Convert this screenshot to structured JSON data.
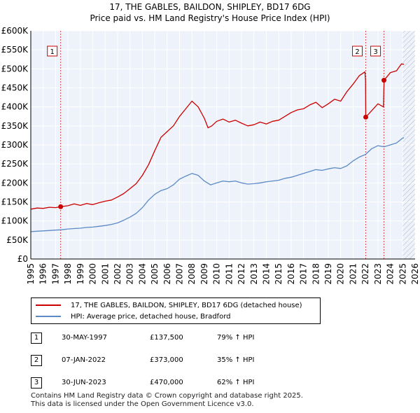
{
  "title_line1": "17, THE GABLES, BAILDON, SHIPLEY, BD17 6DG",
  "title_line2": "Price paid vs. HM Land Registry's House Price Index (HPI)",
  "chart_data": {
    "type": "line",
    "xlim": [
      1995,
      2026
    ],
    "ylim": [
      0,
      600000
    ],
    "x_ticks": [
      1995,
      1996,
      1997,
      1998,
      1999,
      2000,
      2001,
      2002,
      2003,
      2004,
      2005,
      2006,
      2007,
      2008,
      2009,
      2010,
      2011,
      2012,
      2013,
      2014,
      2015,
      2016,
      2017,
      2018,
      2019,
      2020,
      2021,
      2022,
      2023,
      2024,
      2025,
      2026
    ],
    "y_ticks": [
      {
        "value": 0,
        "label": "£0"
      },
      {
        "value": 50000,
        "label": "£50K"
      },
      {
        "value": 100000,
        "label": "£100K"
      },
      {
        "value": 150000,
        "label": "£150K"
      },
      {
        "value": 200000,
        "label": "£200K"
      },
      {
        "value": 250000,
        "label": "£250K"
      },
      {
        "value": 300000,
        "label": "£300K"
      },
      {
        "value": 350000,
        "label": "£350K"
      },
      {
        "value": 400000,
        "label": "£400K"
      },
      {
        "value": 450000,
        "label": "£450K"
      },
      {
        "value": 500000,
        "label": "£500K"
      },
      {
        "value": 550000,
        "label": "£550K"
      },
      {
        "value": 600000,
        "label": "£600K"
      }
    ],
    "grid": true,
    "hatched_future_from": 2025.0,
    "series": [
      {
        "name": "17, THE GABLES, BAILDON, SHIPLEY, BD17 6DG (detached house)",
        "color": "#cc0000",
        "points": [
          [
            1995.0,
            131000
          ],
          [
            1995.5,
            134000
          ],
          [
            1996.0,
            133000
          ],
          [
            1996.5,
            136000
          ],
          [
            1997.0,
            135000
          ],
          [
            1997.41,
            137500
          ],
          [
            1998.0,
            140000
          ],
          [
            1998.5,
            145000
          ],
          [
            1999.0,
            141000
          ],
          [
            1999.5,
            146000
          ],
          [
            2000.0,
            143000
          ],
          [
            2000.5,
            148000
          ],
          [
            2001.0,
            152000
          ],
          [
            2001.5,
            155000
          ],
          [
            2002.0,
            163000
          ],
          [
            2002.5,
            172000
          ],
          [
            2003.0,
            185000
          ],
          [
            2003.5,
            198000
          ],
          [
            2004.0,
            220000
          ],
          [
            2004.5,
            248000
          ],
          [
            2005.0,
            285000
          ],
          [
            2005.5,
            320000
          ],
          [
            2006.0,
            335000
          ],
          [
            2006.5,
            350000
          ],
          [
            2007.0,
            375000
          ],
          [
            2007.5,
            395000
          ],
          [
            2008.0,
            415000
          ],
          [
            2008.5,
            400000
          ],
          [
            2009.0,
            370000
          ],
          [
            2009.3,
            345000
          ],
          [
            2009.6,
            350000
          ],
          [
            2010.0,
            362000
          ],
          [
            2010.5,
            368000
          ],
          [
            2011.0,
            360000
          ],
          [
            2011.5,
            365000
          ],
          [
            2012.0,
            357000
          ],
          [
            2012.5,
            350000
          ],
          [
            2013.0,
            353000
          ],
          [
            2013.5,
            360000
          ],
          [
            2014.0,
            355000
          ],
          [
            2014.5,
            362000
          ],
          [
            2015.0,
            365000
          ],
          [
            2015.5,
            375000
          ],
          [
            2016.0,
            385000
          ],
          [
            2016.5,
            392000
          ],
          [
            2017.0,
            395000
          ],
          [
            2017.5,
            405000
          ],
          [
            2018.0,
            412000
          ],
          [
            2018.5,
            398000
          ],
          [
            2019.0,
            408000
          ],
          [
            2019.5,
            420000
          ],
          [
            2020.0,
            415000
          ],
          [
            2020.5,
            440000
          ],
          [
            2021.0,
            460000
          ],
          [
            2021.5,
            482000
          ],
          [
            2021.95,
            492000
          ],
          [
            2022.0,
            470000
          ],
          [
            2022.02,
            373000
          ],
          [
            2022.5,
            390000
          ],
          [
            2023.0,
            408000
          ],
          [
            2023.45,
            400000
          ],
          [
            2023.5,
            470000
          ],
          [
            2024.0,
            490000
          ],
          [
            2024.5,
            495000
          ],
          [
            2024.9,
            513000
          ],
          [
            2025.1,
            512000
          ]
        ]
      },
      {
        "name": "HPI: Average price, detached house, Bradford",
        "color": "#5b8ac6",
        "points": [
          [
            1995.0,
            72000
          ],
          [
            1995.5,
            73000
          ],
          [
            1996.0,
            74000
          ],
          [
            1996.5,
            75000
          ],
          [
            1997.0,
            76000
          ],
          [
            1997.5,
            77000
          ],
          [
            1998.0,
            79000
          ],
          [
            1998.5,
            80000
          ],
          [
            1999.0,
            81000
          ],
          [
            1999.5,
            83000
          ],
          [
            2000.0,
            84000
          ],
          [
            2000.5,
            86000
          ],
          [
            2001.0,
            88000
          ],
          [
            2001.5,
            91000
          ],
          [
            2002.0,
            95000
          ],
          [
            2002.5,
            102000
          ],
          [
            2003.0,
            110000
          ],
          [
            2003.5,
            120000
          ],
          [
            2004.0,
            135000
          ],
          [
            2004.5,
            155000
          ],
          [
            2005.0,
            170000
          ],
          [
            2005.5,
            180000
          ],
          [
            2006.0,
            185000
          ],
          [
            2006.5,
            195000
          ],
          [
            2007.0,
            210000
          ],
          [
            2007.5,
            218000
          ],
          [
            2008.0,
            225000
          ],
          [
            2008.5,
            220000
          ],
          [
            2009.0,
            205000
          ],
          [
            2009.5,
            195000
          ],
          [
            2010.0,
            200000
          ],
          [
            2010.5,
            205000
          ],
          [
            2011.0,
            203000
          ],
          [
            2011.5,
            205000
          ],
          [
            2012.0,
            200000
          ],
          [
            2012.5,
            197000
          ],
          [
            2013.0,
            198000
          ],
          [
            2013.5,
            200000
          ],
          [
            2014.0,
            203000
          ],
          [
            2014.5,
            205000
          ],
          [
            2015.0,
            207000
          ],
          [
            2015.5,
            212000
          ],
          [
            2016.0,
            215000
          ],
          [
            2016.5,
            220000
          ],
          [
            2017.0,
            225000
          ],
          [
            2017.5,
            230000
          ],
          [
            2018.0,
            235000
          ],
          [
            2018.5,
            233000
          ],
          [
            2019.0,
            237000
          ],
          [
            2019.5,
            240000
          ],
          [
            2020.0,
            238000
          ],
          [
            2020.5,
            245000
          ],
          [
            2021.0,
            258000
          ],
          [
            2021.5,
            268000
          ],
          [
            2022.0,
            275000
          ],
          [
            2022.5,
            290000
          ],
          [
            2023.0,
            298000
          ],
          [
            2023.5,
            295000
          ],
          [
            2024.0,
            300000
          ],
          [
            2024.5,
            305000
          ],
          [
            2025.0,
            318000
          ],
          [
            2025.1,
            319000
          ]
        ]
      }
    ],
    "sales": [
      {
        "label": "1",
        "x": 1997.41,
        "value": 137500
      },
      {
        "label": "2",
        "x": 2022.02,
        "value": 373000
      },
      {
        "label": "3",
        "x": 2023.49,
        "value": 470000
      }
    ]
  },
  "legend": {
    "property": "17, THE GABLES, BAILDON, SHIPLEY, BD17 6DG (detached house)",
    "hpi": "HPI: Average price, detached house, Bradford"
  },
  "transactions": [
    {
      "num": "1",
      "date": "30-MAY-1997",
      "price": "£137,500",
      "hpi": "79% ↑ HPI"
    },
    {
      "num": "2",
      "date": "07-JAN-2022",
      "price": "£373,000",
      "hpi": "35% ↑ HPI"
    },
    {
      "num": "3",
      "date": "30-JUN-2023",
      "price": "£470,000",
      "hpi": "62% ↑ HPI"
    }
  ],
  "footer": {
    "line1": "Contains HM Land Registry data © Crown copyright and database right 2025.",
    "line2": "This data is licensed under the Open Government Licence v3.0."
  },
  "colors": {
    "property": "#cc0000",
    "hpi": "#5b8ac6",
    "plot_bg": "#eef2fa",
    "marker_line": "#cc0000"
  }
}
